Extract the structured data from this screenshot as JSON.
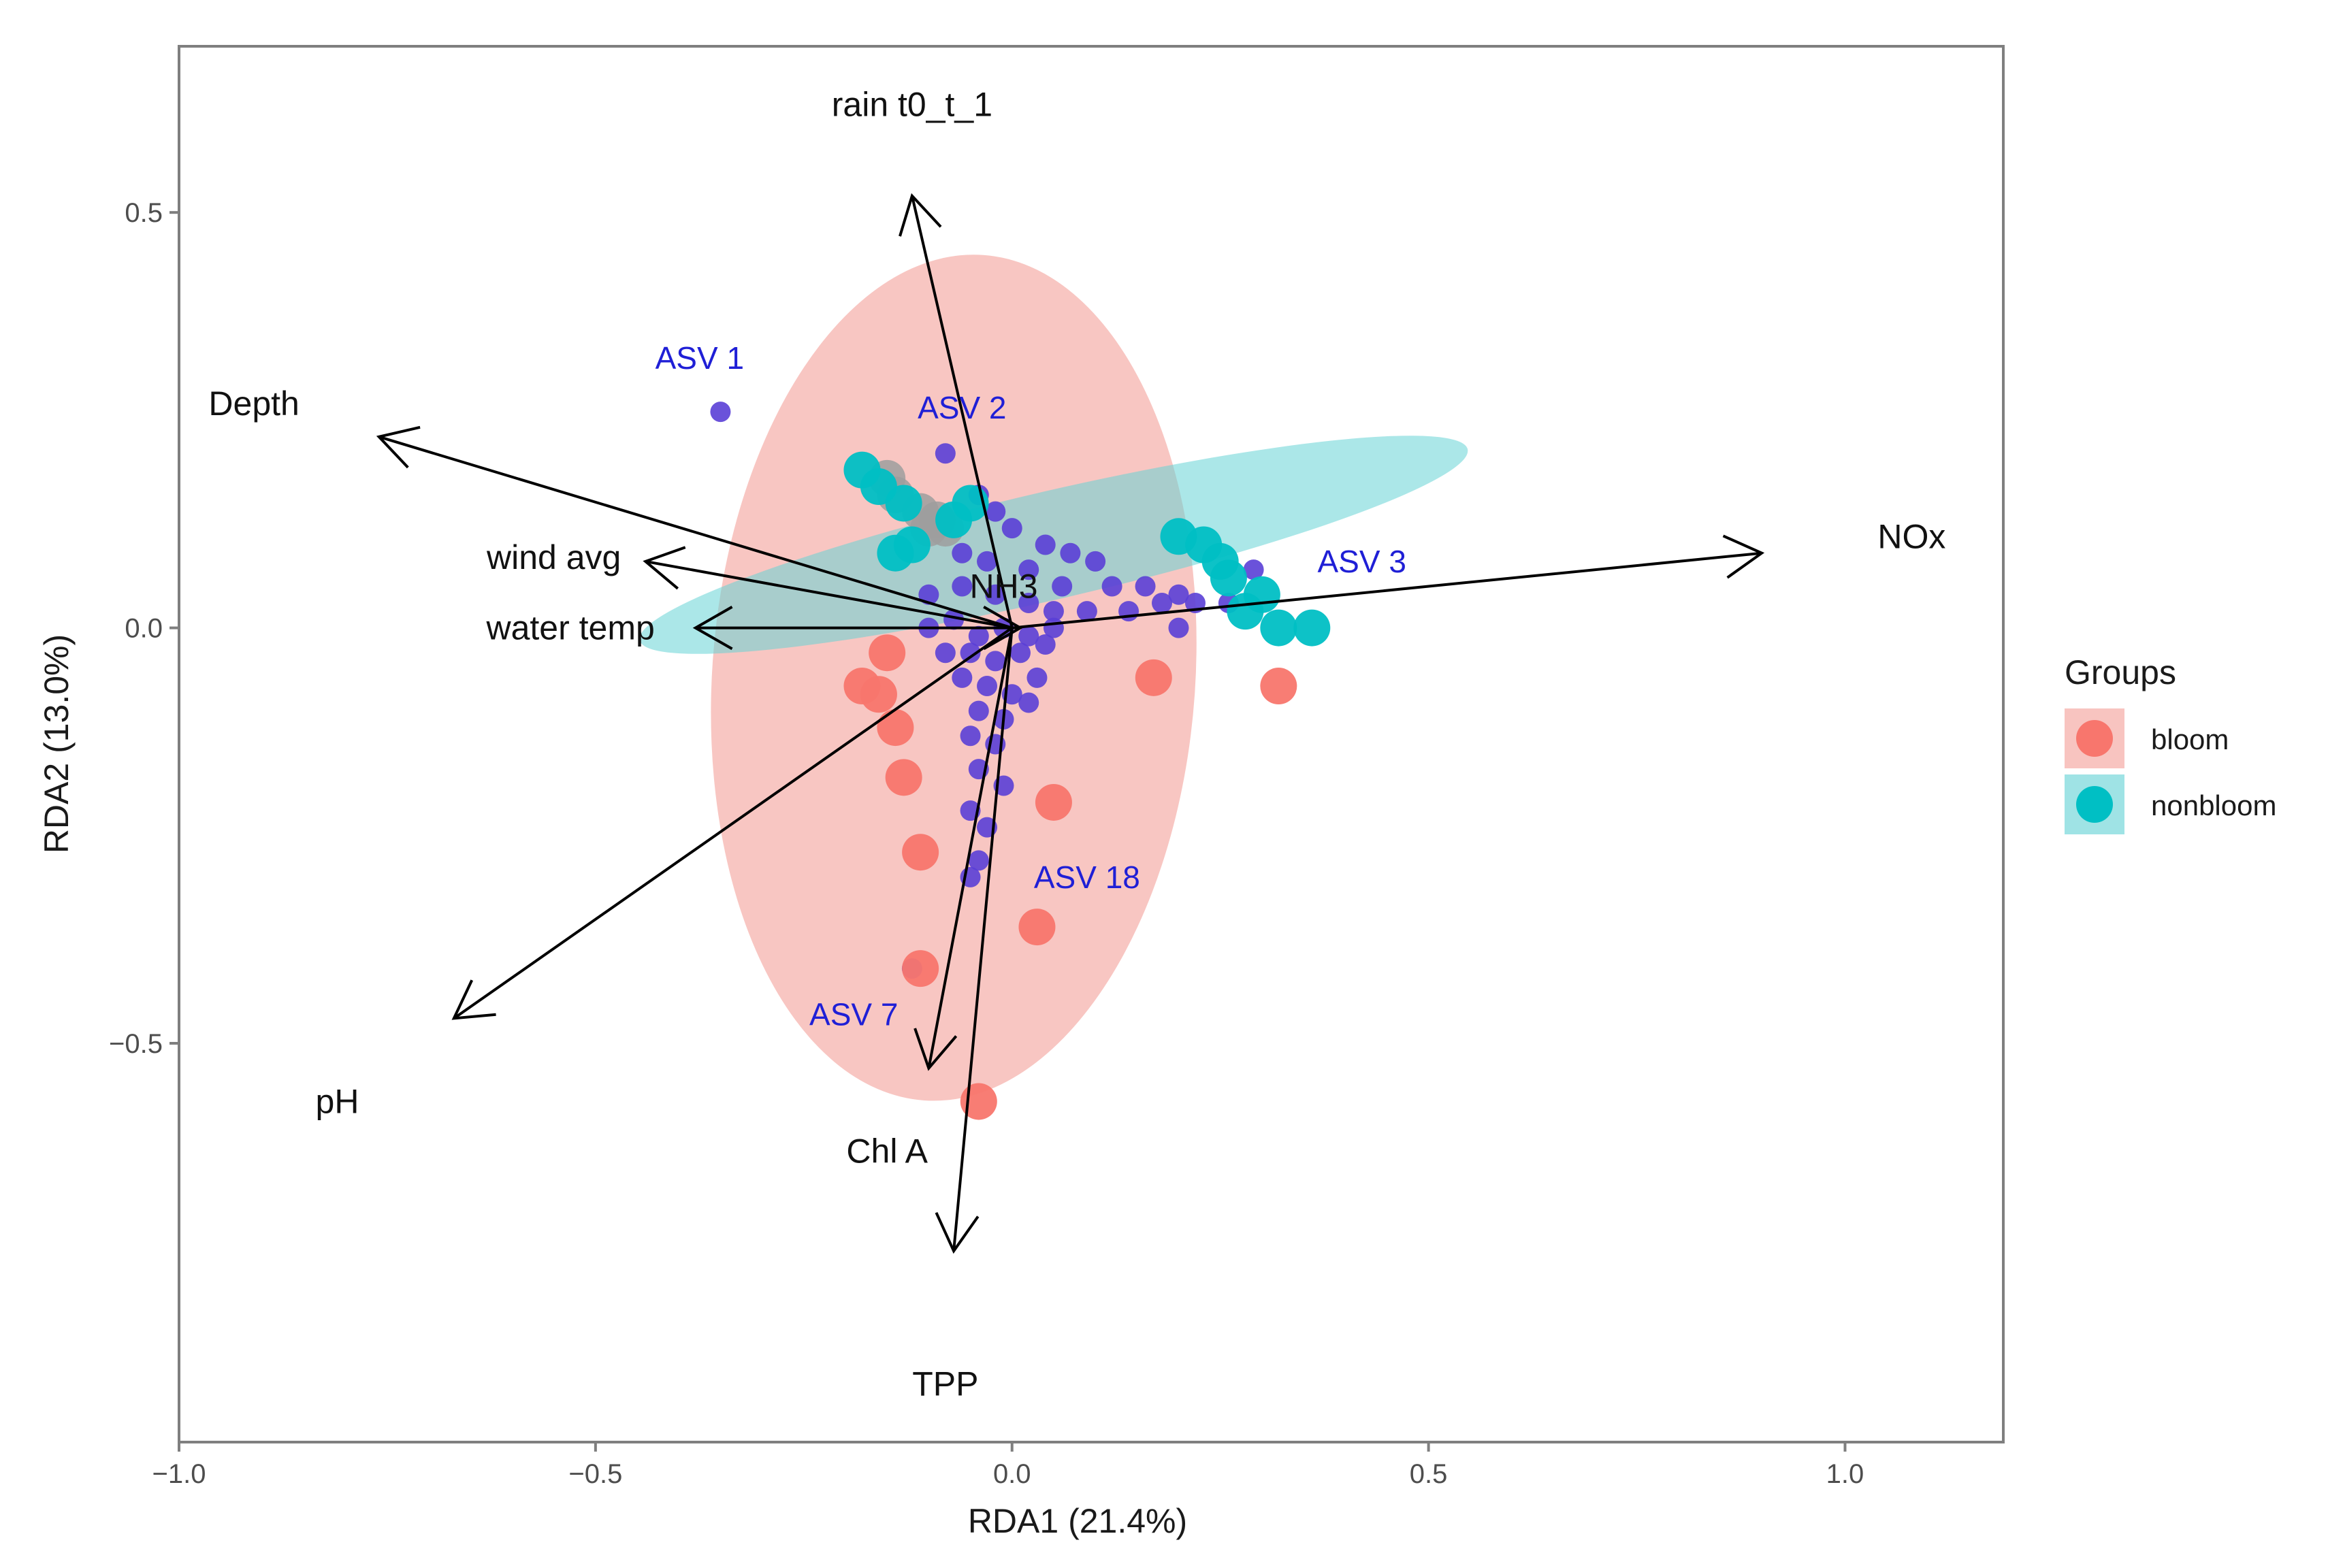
{
  "chart_data": {
    "type": "scatter",
    "subtype": "rda-biplot",
    "xlabel": "RDA1 (21.4%)",
    "ylabel": "RDA2 (13.0%)",
    "xlim": [
      -1.0,
      1.19
    ],
    "ylim": [
      -0.98,
      0.7
    ],
    "x_ticks": [
      -1.0,
      -0.5,
      0.0,
      0.5,
      1.0
    ],
    "x_tick_labels": [
      "−1.0",
      "−0.5",
      "0.0",
      "0.5",
      "1.0"
    ],
    "y_ticks": [
      -0.5,
      0.0,
      0.5
    ],
    "y_tick_labels": [
      "−0.5",
      "0.0",
      "0.5"
    ],
    "grid": false,
    "legend": {
      "title": "Groups",
      "position": "right",
      "entries": [
        {
          "label": "bloom",
          "color": "#F8766D",
          "fill": "#F8C4C0"
        },
        {
          "label": "nonbloom",
          "color": "#00BFC4",
          "fill": "#9FE3E5"
        }
      ]
    },
    "ellipses": [
      {
        "group": "bloom",
        "cx": -0.07,
        "cy": -0.06,
        "rx": 0.29,
        "ry": 0.51,
        "angle_deg": 4,
        "color": "#F4A09A",
        "opacity": 0.6
      },
      {
        "group": "nonbloom",
        "cx": 0.05,
        "cy": 0.1,
        "rx": 0.51,
        "ry": 0.065,
        "angle_deg": -13,
        "color": "#66D3D6",
        "opacity": 0.55
      }
    ],
    "samples": {
      "bloom": [
        [
          -0.15,
          -0.03
        ],
        [
          -0.18,
          -0.07
        ],
        [
          -0.16,
          -0.08
        ],
        [
          -0.14,
          -0.12
        ],
        [
          -0.13,
          -0.18
        ],
        [
          -0.11,
          -0.27
        ],
        [
          -0.11,
          -0.41
        ],
        [
          -0.04,
          -0.57
        ],
        [
          0.03,
          -0.36
        ],
        [
          0.05,
          -0.21
        ],
        [
          0.17,
          -0.06
        ],
        [
          0.32,
          -0.07
        ]
      ],
      "nonbloom": [
        [
          -0.18,
          0.19
        ],
        [
          -0.16,
          0.17
        ],
        [
          -0.13,
          0.15
        ],
        [
          -0.12,
          0.1
        ],
        [
          -0.14,
          0.09
        ],
        [
          -0.05,
          0.15
        ],
        [
          -0.07,
          0.13
        ],
        [
          0.2,
          0.11
        ],
        [
          0.23,
          0.1
        ],
        [
          0.25,
          0.08
        ],
        [
          0.26,
          0.06
        ],
        [
          0.28,
          0.02
        ],
        [
          0.32,
          0.0
        ],
        [
          0.36,
          0.0
        ],
        [
          0.3,
          0.04
        ]
      ]
    },
    "unlabeled_group_points": {
      "color": "#9E9E9E",
      "points": [
        [
          -0.15,
          0.18
        ],
        [
          -0.14,
          0.16
        ],
        [
          -0.11,
          0.14
        ],
        [
          -0.1,
          0.12
        ],
        [
          -0.09,
          0.13
        ],
        [
          -0.08,
          0.12
        ]
      ]
    },
    "species_points": {
      "color": "#5A3FD6",
      "points": [
        [
          -0.35,
          0.26
        ],
        [
          -0.08,
          0.21
        ],
        [
          -0.04,
          0.16
        ],
        [
          -0.02,
          0.14
        ],
        [
          0.0,
          0.12
        ],
        [
          0.04,
          0.1
        ],
        [
          0.07,
          0.09
        ],
        [
          0.1,
          0.08
        ],
        [
          -0.06,
          0.09
        ],
        [
          -0.03,
          0.08
        ],
        [
          0.02,
          0.07
        ],
        [
          0.06,
          0.05
        ],
        [
          0.12,
          0.05
        ],
        [
          0.16,
          0.05
        ],
        [
          0.2,
          0.04
        ],
        [
          -0.1,
          0.04
        ],
        [
          -0.06,
          0.05
        ],
        [
          -0.02,
          0.04
        ],
        [
          0.02,
          0.03
        ],
        [
          0.05,
          0.02
        ],
        [
          0.09,
          0.02
        ],
        [
          0.14,
          0.02
        ],
        [
          0.18,
          0.03
        ],
        [
          0.22,
          0.03
        ],
        [
          0.26,
          0.03
        ],
        [
          0.29,
          0.07
        ],
        [
          -0.1,
          0.0
        ],
        [
          -0.07,
          0.01
        ],
        [
          -0.04,
          -0.01
        ],
        [
          -0.01,
          0.0
        ],
        [
          0.02,
          -0.01
        ],
        [
          0.05,
          0.0
        ],
        [
          -0.08,
          -0.03
        ],
        [
          -0.05,
          -0.03
        ],
        [
          -0.02,
          -0.04
        ],
        [
          0.01,
          -0.03
        ],
        [
          0.04,
          -0.02
        ],
        [
          0.2,
          0.0
        ],
        [
          -0.06,
          -0.06
        ],
        [
          -0.03,
          -0.07
        ],
        [
          0.0,
          -0.08
        ],
        [
          0.03,
          -0.06
        ],
        [
          -0.04,
          -0.1
        ],
        [
          -0.01,
          -0.11
        ],
        [
          0.02,
          -0.09
        ],
        [
          -0.05,
          -0.13
        ],
        [
          -0.02,
          -0.14
        ],
        [
          -0.04,
          -0.17
        ],
        [
          -0.01,
          -0.19
        ],
        [
          -0.05,
          -0.22
        ],
        [
          -0.03,
          -0.24
        ],
        [
          -0.04,
          -0.28
        ],
        [
          -0.05,
          -0.3
        ],
        [
          -0.12,
          -0.41
        ]
      ]
    },
    "species_labels": [
      {
        "label": "ASV  1",
        "x": -0.375,
        "y": 0.325
      },
      {
        "label": "ASV  2",
        "x": -0.06,
        "y": 0.265
      },
      {
        "label": "ASV  3",
        "x": 0.42,
        "y": 0.08
      },
      {
        "label": "ASV  18",
        "x": 0.09,
        "y": -0.3
      },
      {
        "label": "ASV  7",
        "x": -0.19,
        "y": -0.465
      }
    ],
    "env_vectors": [
      {
        "name": "rain_t0_t_1",
        "label": "rain  t0_t_1",
        "x": -0.12,
        "y": 0.52,
        "label_x": -0.12,
        "label_y": 0.63
      },
      {
        "name": "Depth",
        "label": "Depth",
        "x": -0.76,
        "y": 0.23,
        "label_x": -0.91,
        "label_y": 0.27
      },
      {
        "name": "wind_avg",
        "label": "wind  avg",
        "x": -0.44,
        "y": 0.08,
        "label_x": -0.55,
        "label_y": 0.085
      },
      {
        "name": "water_temp",
        "label": "water  temp",
        "x": -0.38,
        "y": 0.0,
        "label_x": -0.53,
        "label_y": 0.0
      },
      {
        "name": "NH3",
        "label": "NH3",
        "x": 0.01,
        "y": 0.0,
        "label_x": -0.01,
        "label_y": 0.05
      },
      {
        "name": "NOx",
        "label": "NOx",
        "x": 0.9,
        "y": 0.09,
        "label_x": 1.08,
        "label_y": 0.11
      },
      {
        "name": "pH",
        "label": "pH",
        "x": -0.67,
        "y": -0.47,
        "label_x": -0.81,
        "label_y": -0.57
      },
      {
        "name": "Chl_A",
        "label": "Chl  A",
        "x": -0.1,
        "y": -0.53,
        "label_x": -0.15,
        "label_y": -0.63
      },
      {
        "name": "TPP",
        "label": "TPP",
        "x": -0.07,
        "y": -0.75,
        "label_x": -0.08,
        "label_y": -0.91
      }
    ]
  }
}
